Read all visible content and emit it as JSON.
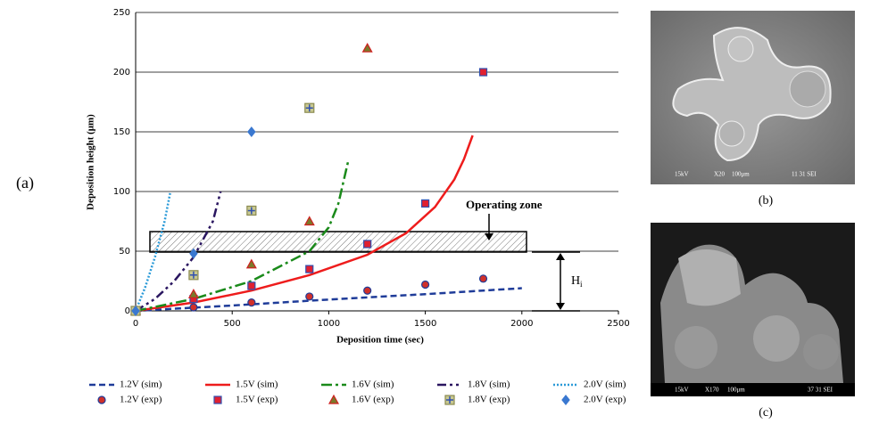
{
  "chart_data": {
    "type": "scatter-line",
    "x_label": "Deposition time (sec)",
    "y_label": "Deposition height (μm)",
    "xlim": [
      0,
      2500
    ],
    "xticks": [
      0,
      500,
      1000,
      1500,
      2000,
      2500
    ],
    "ylim": [
      0,
      250
    ],
    "yticks": [
      0,
      50,
      100,
      150,
      200,
      250
    ],
    "grid": true,
    "annotations": [
      "Operating zone",
      "H",
      "i"
    ],
    "series": [
      {
        "name": "1.2V (sim)",
        "kind": "line",
        "dash": "7,4",
        "color": "#1f3c99",
        "x": [
          0,
          500,
          1000,
          1500,
          2000
        ],
        "values": [
          0,
          4.5,
          9.5,
          14,
          19
        ]
      },
      {
        "name": "1.5V (sim)",
        "kind": "line",
        "dash": "",
        "color": "#ee1c1c",
        "x": [
          0,
          300,
          600,
          900,
          1200,
          1400,
          1550,
          1650,
          1700,
          1745
        ],
        "values": [
          0,
          7,
          17,
          30,
          47,
          65,
          87,
          110,
          127,
          147
        ]
      },
      {
        "name": "1.6V (sim)",
        "kind": "line",
        "dash": "12,4,3,4",
        "color": "#1a8a1a",
        "x": [
          0,
          300,
          600,
          900,
          1000,
          1050,
          1100
        ],
        "values": [
          0,
          10,
          25,
          50,
          70,
          90,
          125
        ]
      },
      {
        "name": "1.8V (sim)",
        "kind": "line",
        "dash": "10,4,3,4,3,4",
        "color": "#2a1660",
        "x": [
          0,
          100,
          200,
          300,
          400,
          440
        ],
        "values": [
          0,
          10,
          25,
          45,
          75,
          100
        ]
      },
      {
        "name": "2.0V (sim)",
        "kind": "line",
        "dash": "2,2",
        "color": "#2a9ad8",
        "x": [
          0,
          50,
          100,
          150,
          180
        ],
        "values": [
          0,
          20,
          45,
          75,
          100
        ]
      },
      {
        "name": "1.2V (exp)",
        "kind": "marker",
        "marker": "circle",
        "color": "#d0302a",
        "stroke": "#1f3c99",
        "x": [
          0,
          300,
          600,
          900,
          1200,
          1500,
          1800
        ],
        "values": [
          0,
          3,
          7,
          12,
          17,
          22,
          27
        ]
      },
      {
        "name": "1.5V (exp)",
        "kind": "marker",
        "marker": "square",
        "color": "#e02030",
        "stroke": "#3050b0",
        "x": [
          0,
          300,
          600,
          900,
          1200,
          1500,
          1800
        ],
        "values": [
          0,
          10,
          21,
          35,
          56,
          90,
          200
        ]
      },
      {
        "name": "1.6V (exp)",
        "kind": "marker",
        "marker": "triangle",
        "color": "#7a7a2a",
        "stroke": "#d02020",
        "x": [
          0,
          300,
          600,
          900,
          1200
        ],
        "values": [
          0,
          14,
          39,
          75,
          220
        ]
      },
      {
        "name": "1.8V (exp)",
        "kind": "marker",
        "marker": "crosssquare",
        "color": "#c8c890",
        "stroke": "#3050b0",
        "x": [
          0,
          300,
          600,
          900
        ],
        "values": [
          0,
          30,
          84,
          170
        ]
      },
      {
        "name": "2.0V (exp)",
        "kind": "marker",
        "marker": "diamond",
        "color": "#3a78d0",
        "stroke": "#3a78d0",
        "x": [
          0,
          300,
          600
        ],
        "values": [
          0,
          48,
          150
        ]
      }
    ]
  },
  "panel_labels": {
    "a": "(a)",
    "b": "(b)",
    "c": "(c)"
  },
  "image_b_text": [
    "15kV",
    "X20",
    "100μm",
    "11 31 SEI"
  ],
  "image_c_text": [
    "15kV",
    "X170",
    "100μm",
    "37 31 SEI"
  ]
}
